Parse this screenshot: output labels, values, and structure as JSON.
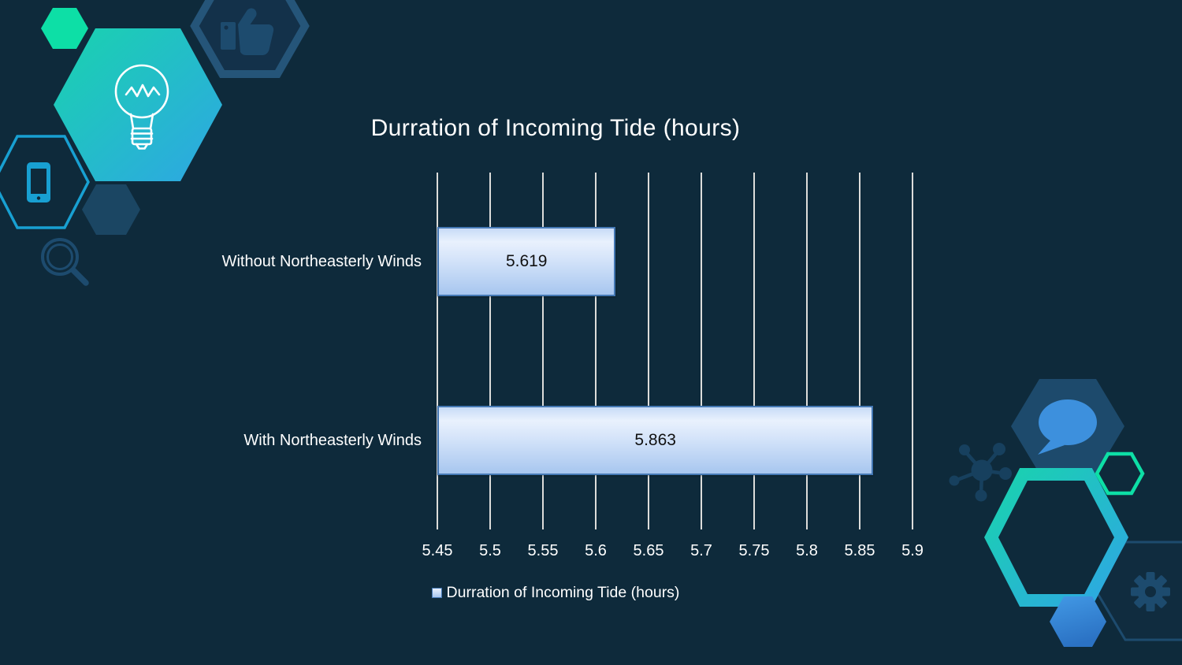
{
  "slide": {
    "title": "Durration of Incoming Tide (hours)"
  },
  "chart_data": {
    "type": "bar",
    "orientation": "horizontal",
    "title": "Durration of Incoming Tide (hours)",
    "categories": [
      "Without Northeasterly Winds",
      "With Northeasterly Winds"
    ],
    "values": [
      5.619,
      5.863
    ],
    "data_labels": [
      "5.619",
      "5.863"
    ],
    "series_name": "Durration of Incoming Tide (hours)",
    "xlim": [
      5.45,
      5.9
    ],
    "x_ticks": [
      5.45,
      5.5,
      5.55,
      5.6,
      5.65,
      5.7,
      5.75,
      5.8,
      5.85,
      5.9
    ],
    "x_tick_labels": [
      "5.45",
      "5.5",
      "5.55",
      "5.6",
      "5.65",
      "5.7",
      "5.75",
      "5.8",
      "5.85",
      "5.9"
    ],
    "grid": true,
    "legend": {
      "position": "bottom",
      "label": "Durration of Incoming Tide (hours)"
    }
  },
  "theme": {
    "bg": "#0e2a3b",
    "text": "#ffffff",
    "grid": "#dcdcda",
    "label": "#111111",
    "bar-border": "#4478b4",
    "bar-top": "#c7dbf7",
    "bar-light": "#e9f1fd",
    "bar-mid": "#d2e2f9",
    "bar-bottom": "#a7c6ef",
    "teal-a": "#19d3ae",
    "teal-b": "#2ea6e4",
    "green": "#0ddfa6",
    "cyan": "#18a0d2",
    "icon-navy": "#1d4b6e",
    "hex-fill": "#13314a",
    "hex-stroke": "#255579",
    "dark-hex": "#1b4663",
    "chat-fill": "#1d4a6c",
    "chat-bubble": "#3d90dd",
    "blue-a": "#4299e5",
    "blue-b": "#2b72c4",
    "molecule": "#17405e",
    "gear-fill": "#102c3f"
  },
  "decorations": {
    "icons": [
      "lightbulb-icon",
      "thumbs-up-icon",
      "smartphone-icon",
      "magnifier-icon",
      "chat-bubble-icon",
      "molecule-icon",
      "gear-icon"
    ]
  }
}
